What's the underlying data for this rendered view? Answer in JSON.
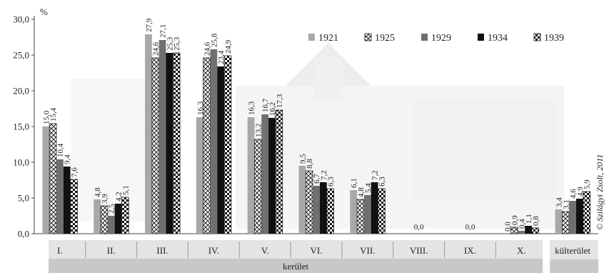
{
  "chart_data": {
    "type": "bar",
    "unit_label": "%",
    "ylim": [
      0,
      30
    ],
    "yticks": [
      "0,0",
      "5,0",
      "10,0",
      "15,0",
      "20,0",
      "25,0",
      "30,0"
    ],
    "grid": false,
    "legend_position": "top-right",
    "categories": [
      "I.",
      "II.",
      "III.",
      "IV.",
      "V.",
      "VI.",
      "VII.",
      "VIII.",
      "IX.",
      "X.",
      "külterület"
    ],
    "group_label": "kerület",
    "series": [
      {
        "name": "1921",
        "color": "#a8a8a8",
        "pattern": "solid",
        "values": [
          15.0,
          4.8,
          27.9,
          16.3,
          16.3,
          9.5,
          6.1,
          0,
          0,
          0.0,
          3.4
        ],
        "labels": [
          "15,0",
          "4,8",
          "27,9",
          "16,3",
          "16,3",
          "9,5",
          "6,1",
          "",
          "",
          "0,0",
          "3,4"
        ]
      },
      {
        "name": "1925",
        "color": "#ffffff",
        "pattern": "crosshatch",
        "values": [
          15.4,
          3.9,
          24.6,
          24.6,
          13.2,
          8.8,
          4.8,
          0,
          0,
          0.9,
          3.1
        ],
        "labels": [
          "15,4",
          "3,9",
          "24,6",
          "24,6",
          "13,2",
          "8,8",
          "4,8",
          "",
          "",
          "0,9",
          "3,1"
        ]
      },
      {
        "name": "1929",
        "color": "#707070",
        "pattern": "solid",
        "values": [
          10.4,
          2.5,
          27.1,
          25.8,
          16.7,
          6.7,
          5.4,
          0,
          0,
          0.4,
          4.6
        ],
        "labels": [
          "10,4",
          "2,5",
          "27,1",
          "25,8",
          "16,7",
          "6,7",
          "5,4",
          "",
          "",
          "0,4",
          "4,6"
        ]
      },
      {
        "name": "1934",
        "color": "#111111",
        "pattern": "solid",
        "values": [
          9.4,
          4.2,
          25.3,
          23.4,
          16.2,
          7.2,
          7.2,
          0,
          0,
          1.1,
          4.9
        ],
        "labels": [
          "9,4",
          "4,2",
          "25,3",
          "23,4",
          "16,2",
          "7,2",
          "7,2",
          "",
          "",
          "1,1",
          "4,9"
        ]
      },
      {
        "name": "1939",
        "color": "#111111",
        "pattern": "checker",
        "values": [
          7.6,
          5.1,
          25.3,
          24.9,
          17.3,
          6.3,
          6.3,
          0,
          0,
          0.8,
          5.9
        ],
        "labels": [
          "7,6",
          "5,1",
          "25,3",
          "24,9",
          "17,3",
          "6,3",
          "6,3",
          "",
          "",
          "0,8",
          "5,9"
        ]
      }
    ],
    "center_labels": [
      {
        "category": "VIII.",
        "text": "0,0"
      },
      {
        "category": "IX.",
        "text": "0,0"
      }
    ],
    "credit": "© Szilágyi Zsolt, 2011"
  }
}
